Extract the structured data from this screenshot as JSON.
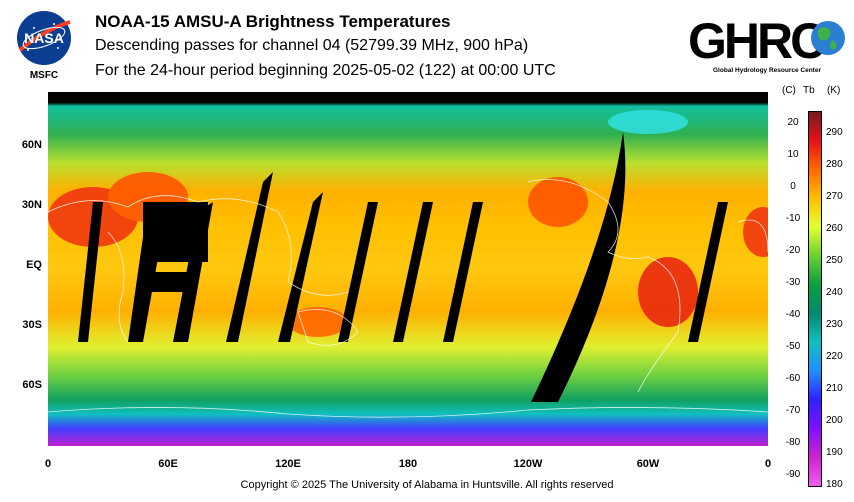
{
  "header": {
    "title": "NOAA-15 AMSU-A Brightness Temperatures",
    "subtitle": "Descending passes for channel 04 (52799.39 MHz, 900 hPa)",
    "period": "For the 24-hour period beginning 2025-05-02 (122) at 00:00 UTC"
  },
  "logos": {
    "nasa_text": "NASA",
    "nasa_center": "MSFC",
    "ghrc_text": "GHRC",
    "ghrc_subtitle": "Global Hydrology Resource Center"
  },
  "map": {
    "lat_labels": [
      "60N",
      "30N",
      "EQ",
      "30S",
      "60S"
    ],
    "lat_values": [
      60,
      30,
      0,
      -30,
      -60
    ],
    "lon_labels": [
      "0",
      "60E",
      "120E",
      "180",
      "120W",
      "60W",
      "0"
    ],
    "lon_values": [
      0,
      60,
      120,
      180,
      240,
      300,
      360
    ],
    "no_data_color": "#000000"
  },
  "colorbar": {
    "unit_c": "(C)",
    "unit_tb": "Tb",
    "unit_k": "(K)",
    "celsius_ticks": [
      "20",
      "10",
      "0",
      "-10",
      "-20",
      "-30",
      "-40",
      "-50",
      "-60",
      "-70",
      "-80",
      "-90"
    ],
    "celsius_values": [
      20,
      10,
      0,
      -10,
      -20,
      -30,
      -40,
      -50,
      -60,
      -70,
      -80,
      -90
    ],
    "kelvin_ticks": [
      "290",
      "280",
      "270",
      "260",
      "250",
      "240",
      "230",
      "220",
      "210",
      "200",
      "190",
      "180"
    ],
    "kelvin_values": [
      290,
      280,
      270,
      260,
      250,
      240,
      230,
      220,
      210,
      200,
      190,
      180
    ],
    "k_min": 180,
    "k_max": 297,
    "stops": [
      "#7a1a20",
      "#e8101a",
      "#ff6a00",
      "#ffc000",
      "#e4ff30",
      "#6cd030",
      "#0aa040",
      "#008a70",
      "#10c0c0",
      "#2090ff",
      "#3020ff",
      "#8010ff",
      "#d020d0",
      "#f060f0"
    ]
  },
  "footer": {
    "copyright": "Copyright © 2025 The University of Alabama in Huntsville.  All rights reserved"
  }
}
